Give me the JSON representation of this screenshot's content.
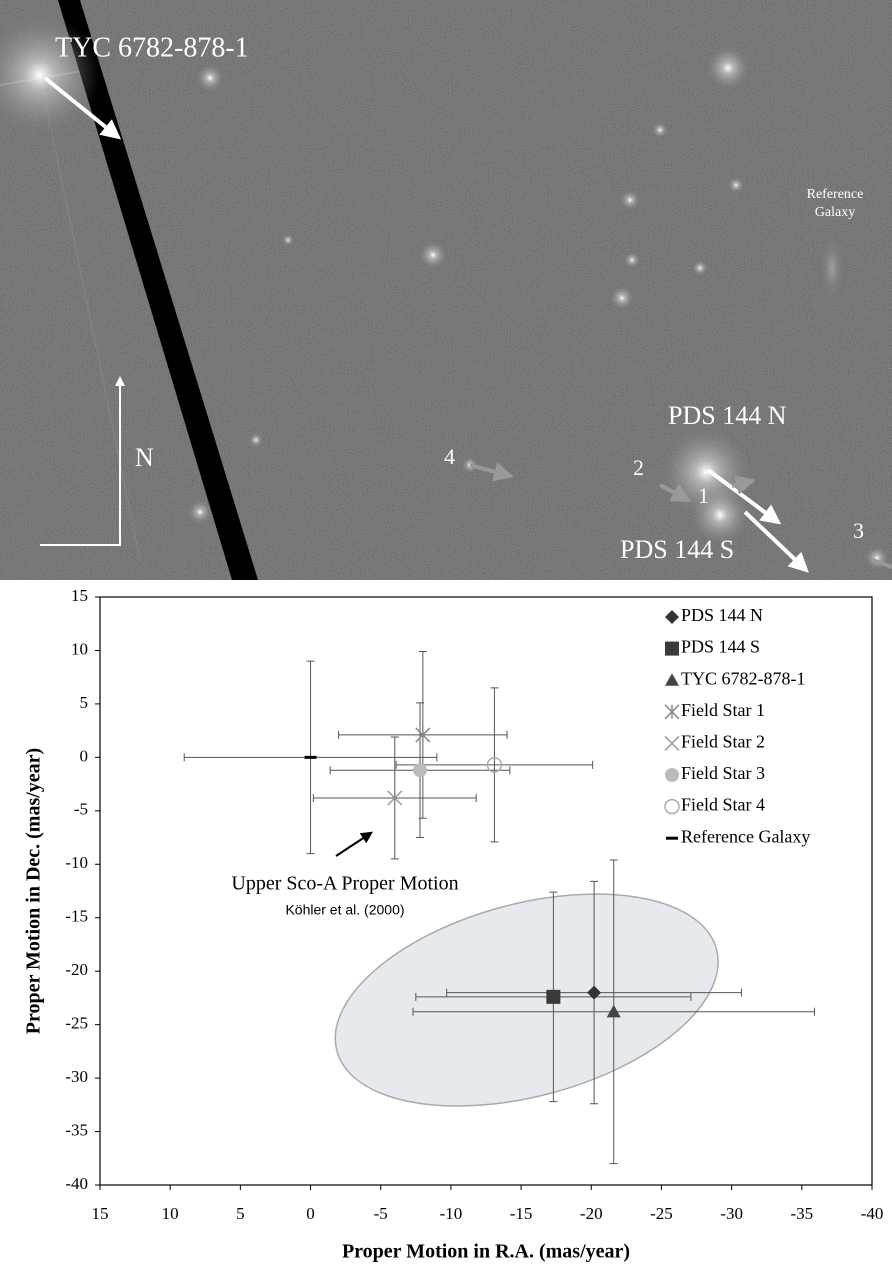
{
  "image": {
    "labels": {
      "star": "TYC 6782-878-1",
      "galaxy_line1": "Reference",
      "galaxy_line2": "Galaxy",
      "north_star": "PDS 144 N",
      "south_star": "PDS 144 S",
      "compass": "N",
      "field1": "1",
      "field2": "2",
      "field3": "3",
      "field4": "4"
    }
  },
  "chart_data": {
    "type": "scatter",
    "x_label": "Proper Motion in R.A. (mas/year)",
    "y_label": "Proper Motion in Dec. (mas/year)",
    "xlim": [
      15,
      -40
    ],
    "xticks": [
      15,
      10,
      5,
      0,
      -5,
      -10,
      -15,
      -20,
      -25,
      -30,
      -35,
      -40
    ],
    "ylim": [
      -40,
      15
    ],
    "yticks": [
      15,
      10,
      5,
      0,
      -5,
      -10,
      -15,
      -20,
      -25,
      -30,
      -35,
      -40
    ],
    "grid": false,
    "legend": "top-right",
    "series": [
      {
        "name": "PDS 144 N",
        "marker": "diamond",
        "color": "#333333",
        "x": [
          -20.2
        ],
        "values": [
          -22
        ],
        "xerr": [
          10.5
        ],
        "yerr": [
          10.4
        ]
      },
      {
        "name": "PDS 144 S",
        "marker": "square",
        "color": "#3a3a3a",
        "x": [
          -17.3
        ],
        "values": [
          -22.4
        ],
        "xerr": [
          9.8
        ],
        "yerr": [
          9.8
        ]
      },
      {
        "name": "TYC 6782-878-1",
        "marker": "triangle",
        "color": "#444444",
        "x": [
          -21.6
        ],
        "values": [
          -23.8
        ],
        "xerr": [
          14.3
        ],
        "yerr": [
          14.2
        ]
      },
      {
        "name": "Field Star 1",
        "marker": "asterisk",
        "color": "#888888",
        "x": [
          -8
        ],
        "values": [
          2.1
        ],
        "xerr": [
          6
        ],
        "yerr": [
          7.8
        ]
      },
      {
        "name": "Field Star 2",
        "marker": "cross",
        "color": "#999999",
        "x": [
          -6
        ],
        "values": [
          -3.8
        ],
        "xerr": [
          5.8
        ],
        "yerr": [
          5.7
        ]
      },
      {
        "name": "Field Star 3",
        "marker": "circle",
        "color": "#bbbbbb",
        "x": [
          -7.8
        ],
        "values": [
          -1.2
        ],
        "xerr": [
          6.4
        ],
        "yerr": [
          6.3
        ]
      },
      {
        "name": "Field Star 4",
        "marker": "open-circle",
        "color": "#aaaaaa",
        "x": [
          -13.1
        ],
        "values": [
          -0.7
        ],
        "xerr": [
          7
        ],
        "yerr": [
          7.2
        ]
      },
      {
        "name": "Reference Galaxy",
        "marker": "dash",
        "color": "#000000",
        "x": [
          0
        ],
        "values": [
          0
        ],
        "xerr": [
          9
        ],
        "yerr": [
          9
        ]
      }
    ],
    "region": {
      "center": [
        -15.4,
        -22.7
      ],
      "radii": [
        14,
        9
      ],
      "angle": -15,
      "label": "Upper Sco-A Proper Motion",
      "source": "Köhler et al. (2000)"
    }
  }
}
